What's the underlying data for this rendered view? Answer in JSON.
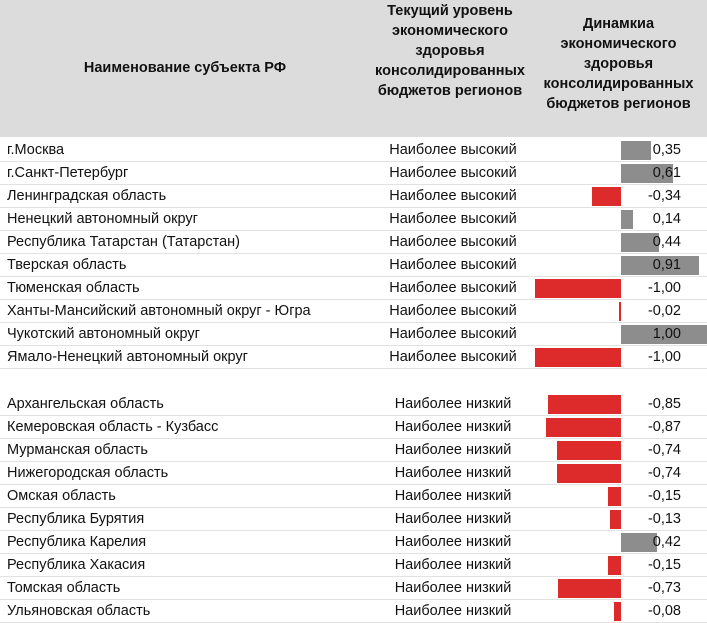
{
  "headers": {
    "name": "Наименование субъекта РФ",
    "level": "Текущий уровень экономического здоровья консолидированных бюджетов регионов",
    "dynamics": "Динамкиа экономического здоровья консолидированных бюджетов регионов"
  },
  "colors": {
    "header_bg": "#dcdcdc",
    "positive_bar": "#8d8d8d",
    "negative_bar": "#dd2a2a"
  },
  "groups": [
    {
      "rows": [
        {
          "name": "г.Москва",
          "level": "Наиболее высокий",
          "dynamics": 0.35,
          "dynamics_label": "0,35"
        },
        {
          "name": "г.Санкт-Петербург",
          "level": "Наиболее высокий",
          "dynamics": 0.61,
          "dynamics_label": "0,61"
        },
        {
          "name": "Ленинградская область",
          "level": "Наиболее высокий",
          "dynamics": -0.34,
          "dynamics_label": "-0,34"
        },
        {
          "name": "Ненецкий автономный округ",
          "level": "Наиболее высокий",
          "dynamics": 0.14,
          "dynamics_label": "0,14"
        },
        {
          "name": "Республика Татарстан (Татарстан)",
          "level": "Наиболее высокий",
          "dynamics": 0.44,
          "dynamics_label": "0,44"
        },
        {
          "name": "Тверская область",
          "level": "Наиболее высокий",
          "dynamics": 0.91,
          "dynamics_label": "0,91"
        },
        {
          "name": "Тюменская область",
          "level": "Наиболее высокий",
          "dynamics": -1.0,
          "dynamics_label": "-1,00"
        },
        {
          "name": "Ханты-Мансийский автономный округ - Югра",
          "level": "Наиболее высокий",
          "dynamics": -0.02,
          "dynamics_label": "-0,02"
        },
        {
          "name": "Чукотский автономный округ",
          "level": "Наиболее высокий",
          "dynamics": 1.0,
          "dynamics_label": "1,00"
        },
        {
          "name": "Ямало-Ненецкий автономный округ",
          "level": "Наиболее высокий",
          "dynamics": -1.0,
          "dynamics_label": "-1,00"
        }
      ]
    },
    {
      "rows": [
        {
          "name": "Архангельская область",
          "level": "Наиболее низкий",
          "dynamics": -0.85,
          "dynamics_label": "-0,85"
        },
        {
          "name": "Кемеровская область - Кузбасс",
          "level": "Наиболее низкий",
          "dynamics": -0.87,
          "dynamics_label": "-0,87"
        },
        {
          "name": "Мурманская область",
          "level": "Наиболее низкий",
          "dynamics": -0.74,
          "dynamics_label": "-0,74"
        },
        {
          "name": "Нижегородская область",
          "level": "Наиболее низкий",
          "dynamics": -0.74,
          "dynamics_label": "-0,74"
        },
        {
          "name": "Омская область",
          "level": "Наиболее низкий",
          "dynamics": -0.15,
          "dynamics_label": "-0,15"
        },
        {
          "name": "Республика Бурятия",
          "level": "Наиболее низкий",
          "dynamics": -0.13,
          "dynamics_label": "-0,13"
        },
        {
          "name": "Республика Карелия",
          "level": "Наиболее низкий",
          "dynamics": 0.42,
          "dynamics_label": "0,42"
        },
        {
          "name": "Республика Хакасия",
          "level": "Наиболее низкий",
          "dynamics": -0.15,
          "dynamics_label": "-0,15"
        },
        {
          "name": "Томская область",
          "level": "Наиболее низкий",
          "dynamics": -0.73,
          "dynamics_label": "-0,73"
        },
        {
          "name": "Ульяновская область",
          "level": "Наиболее низкий",
          "dynamics": -0.08,
          "dynamics_label": "-0,08"
        }
      ]
    }
  ]
}
